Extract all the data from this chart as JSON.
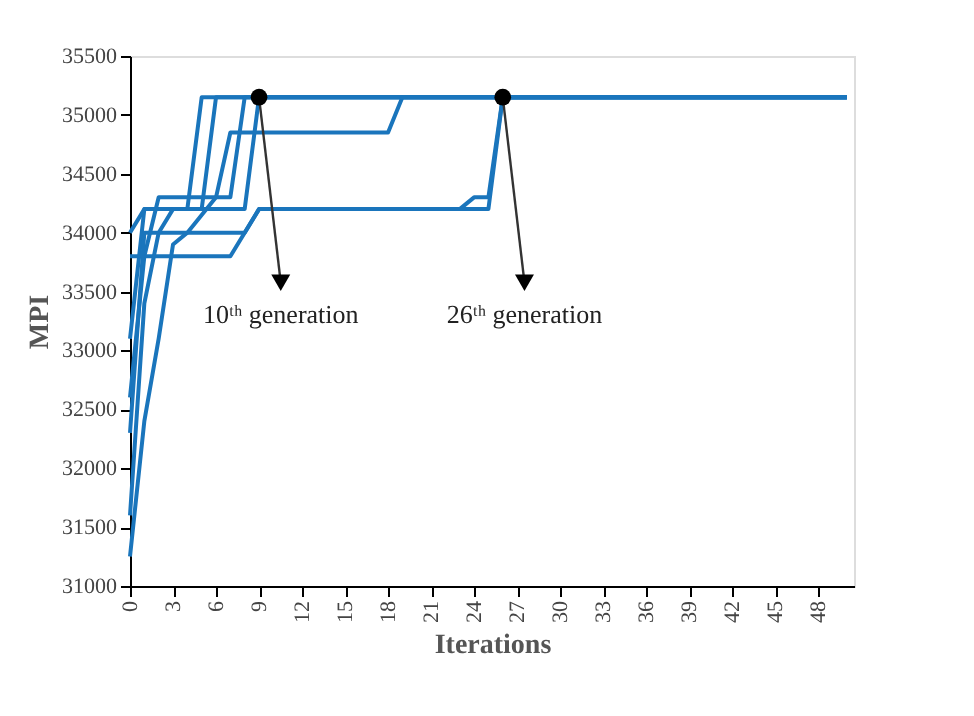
{
  "chart_data": {
    "type": "line",
    "xlabel": "Iterations",
    "ylabel": "MPI",
    "xlim": [
      0,
      50.5
    ],
    "xticks": [
      0,
      3,
      6,
      9,
      12,
      15,
      18,
      21,
      24,
      27,
      30,
      33,
      36,
      39,
      42,
      45,
      48
    ],
    "ylim": [
      31000,
      35500
    ],
    "yticks": [
      31000,
      31500,
      32000,
      32500,
      33000,
      33500,
      34000,
      34500,
      35000,
      35500
    ],
    "grid": false,
    "marker": "none",
    "line_style": "solid",
    "annotations": [
      {
        "text": "10ᵗʰ generation",
        "x": 9,
        "y": 35150
      },
      {
        "text": "26ᵗʰ generation",
        "x": 26,
        "y": 35150
      }
    ],
    "series": [
      {
        "color": "#1a75bc",
        "x": [
          0,
          1,
          4,
          5,
          50
        ],
        "values": [
          34000,
          34200,
          34200,
          35150,
          35150
        ]
      },
      {
        "color": "#1a75bc",
        "x": [
          0,
          1,
          5,
          6,
          50
        ],
        "values": [
          33100,
          34200,
          34200,
          35150,
          35150
        ]
      },
      {
        "color": "#1a75bc",
        "x": [
          0,
          1,
          2,
          7,
          8,
          50
        ],
        "values": [
          32600,
          33800,
          34300,
          34300,
          35150,
          35150
        ]
      },
      {
        "color": "#1a75bc",
        "x": [
          0,
          1,
          2,
          3,
          8,
          9,
          50
        ],
        "values": [
          31600,
          33400,
          34000,
          34200,
          34200,
          35150,
          35150
        ]
      },
      {
        "color": "#1a75bc",
        "x": [
          0,
          1,
          2,
          3,
          4,
          6,
          7,
          18,
          19,
          50
        ],
        "values": [
          31250,
          32400,
          33100,
          33900,
          34000,
          34300,
          34850,
          34850,
          35150,
          35150
        ]
      },
      {
        "color": "#1a75bc",
        "x": [
          0,
          7,
          9,
          23,
          24,
          25,
          26,
          50
        ],
        "values": [
          33800,
          33800,
          34200,
          34200,
          34300,
          34300,
          35150,
          35150
        ]
      },
      {
        "color": "#1a75bc",
        "x": [
          0,
          1,
          8,
          9,
          25,
          26,
          50
        ],
        "values": [
          32300,
          34000,
          34000,
          34200,
          34200,
          35150,
          35150
        ]
      }
    ]
  }
}
